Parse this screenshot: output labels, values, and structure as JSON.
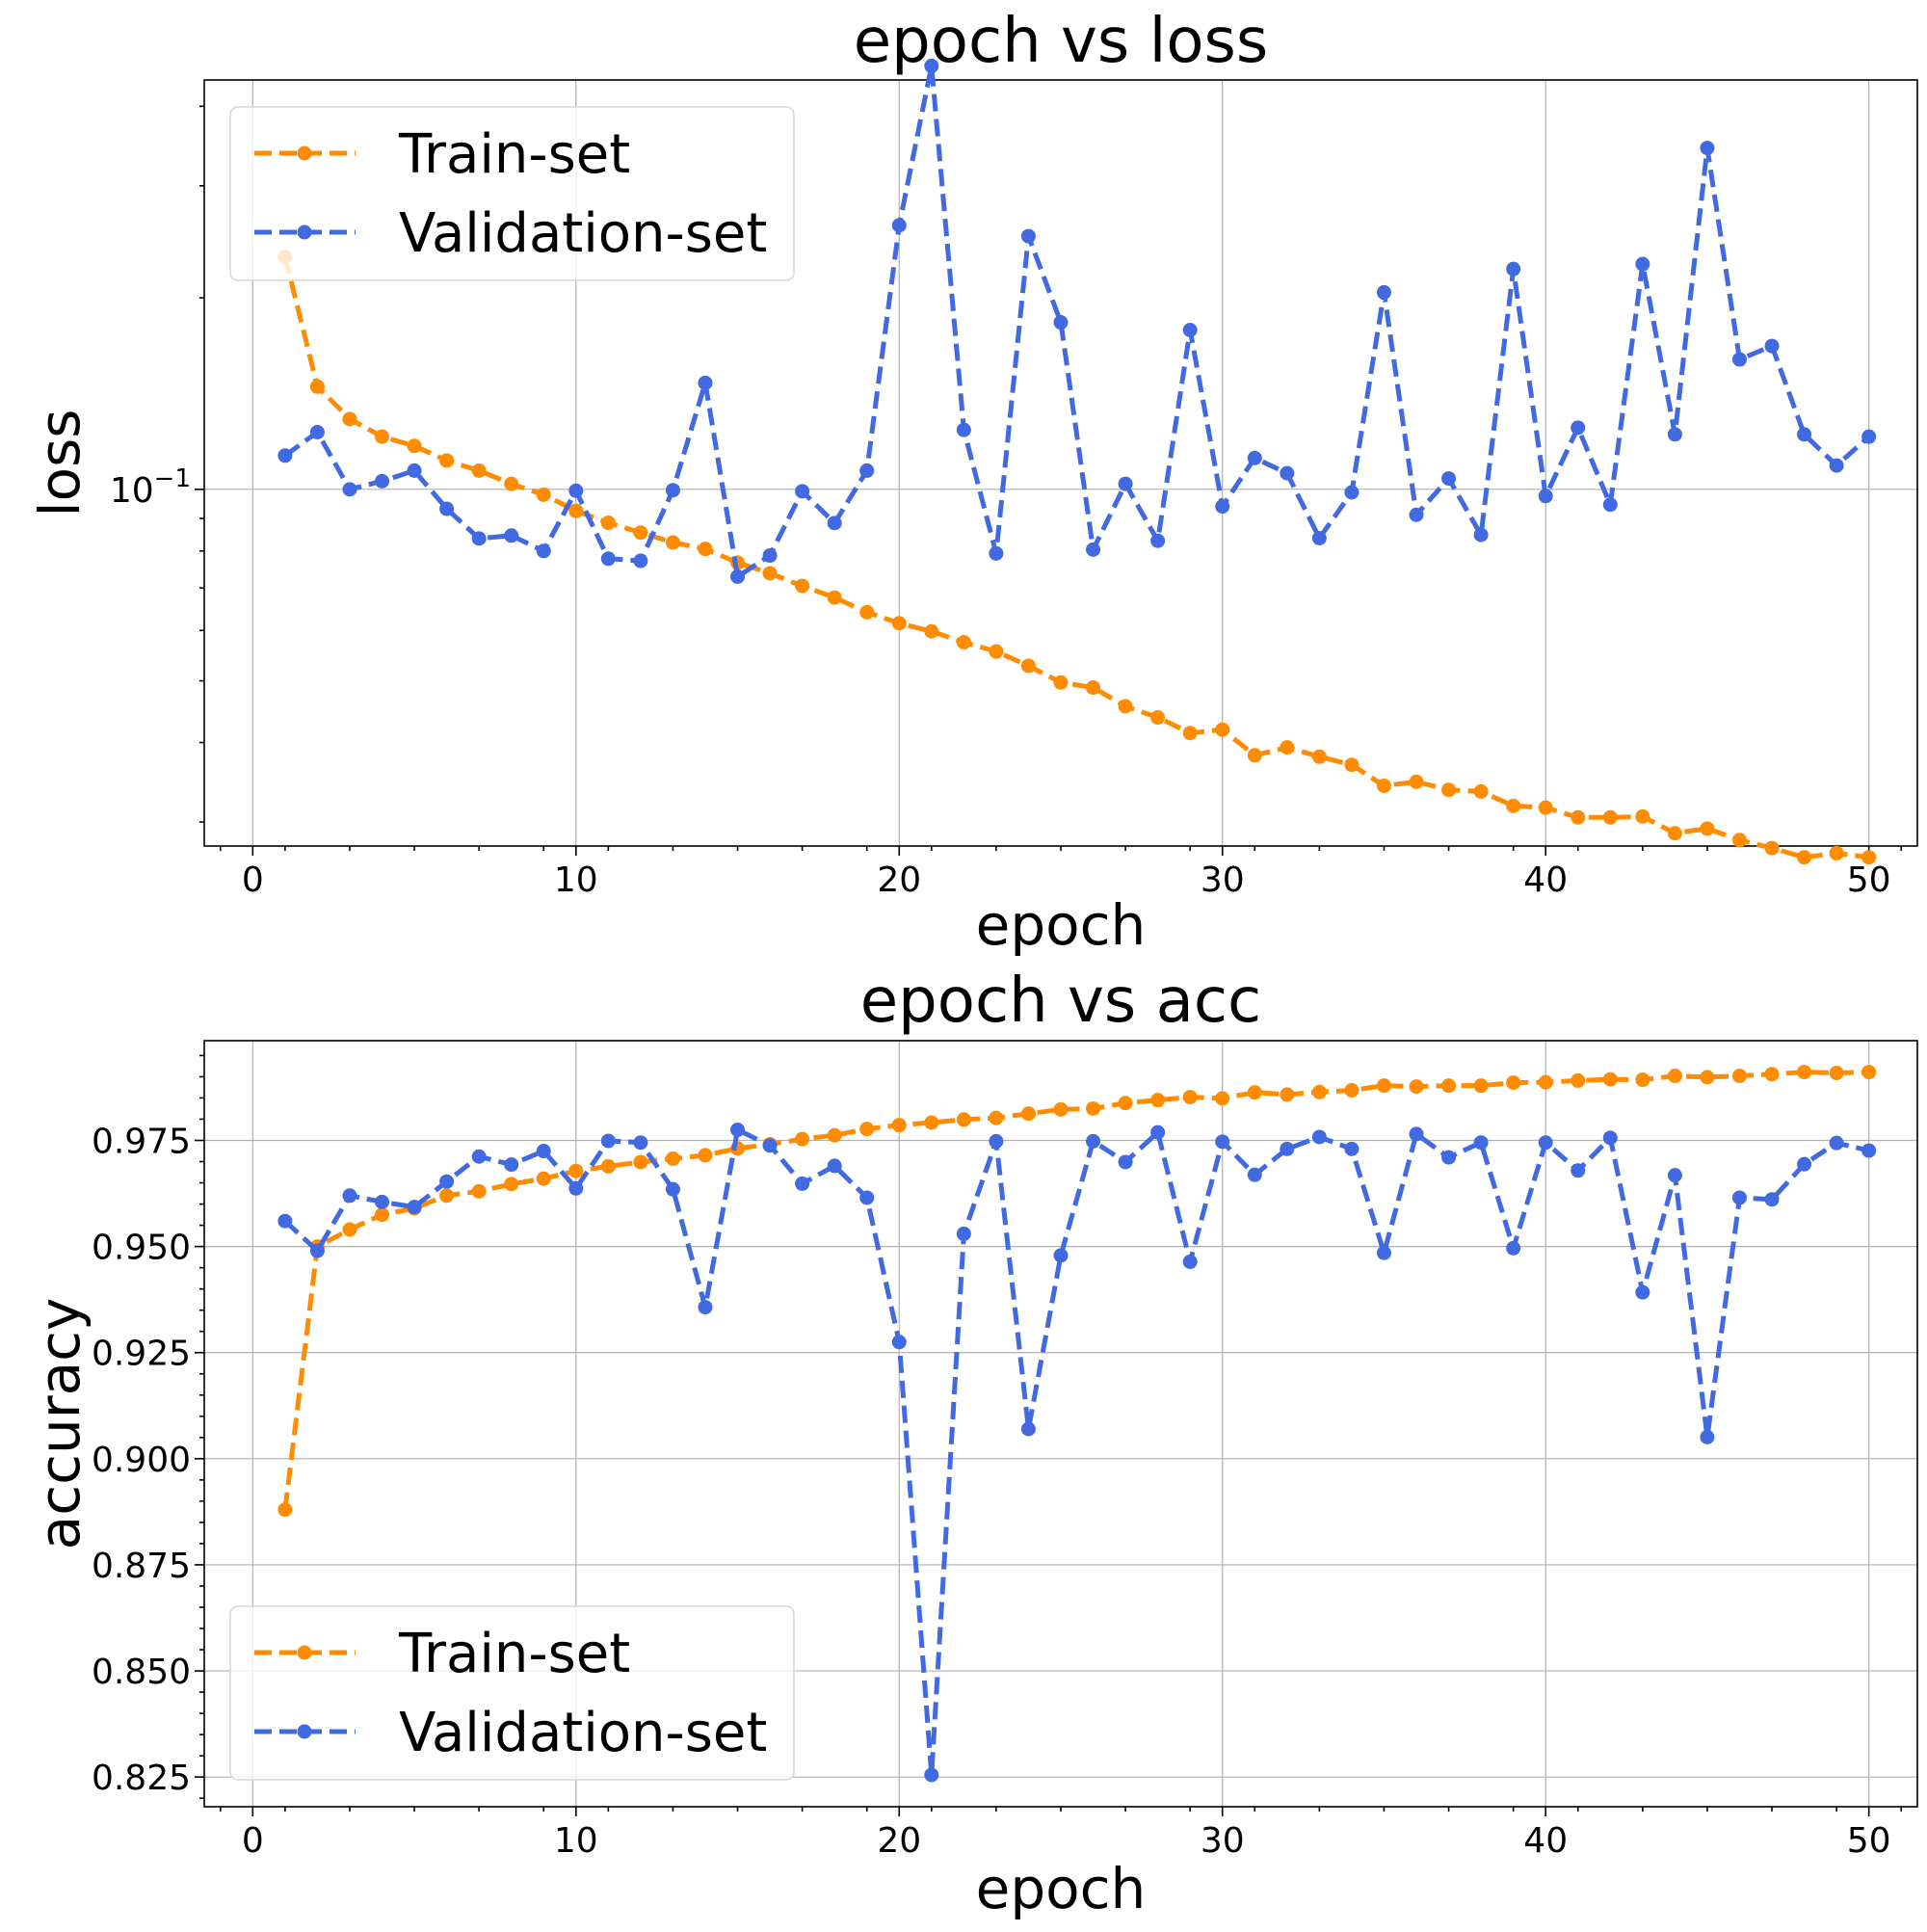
{
  "chart_data": [
    {
      "type": "line",
      "title": "epoch vs loss",
      "xlabel": "epoch",
      "ylabel": "loss",
      "yscale": "log",
      "xlim": [
        -1.5,
        51.5
      ],
      "ylim": [
        0.0275,
        0.44
      ],
      "xticks": [
        0,
        10,
        20,
        30,
        40,
        50
      ],
      "xtick_labels": [
        "0",
        "10",
        "20",
        "30",
        "40",
        "50"
      ],
      "yticks": [
        0.1
      ],
      "ytick_labels": [
        {
          "base": "10",
          "exp": "−1"
        }
      ],
      "grid": true,
      "legend": {
        "position": "upper-left",
        "entries": [
          "Train-set",
          "Validation-set"
        ]
      },
      "colors": {
        "Train-set": "#ff8c00",
        "Validation-set": "#4169e1"
      },
      "x": [
        1,
        2,
        3,
        4,
        5,
        6,
        7,
        8,
        9,
        10,
        11,
        12,
        13,
        14,
        15,
        16,
        17,
        18,
        19,
        20,
        21,
        22,
        23,
        24,
        25,
        26,
        27,
        28,
        29,
        30,
        31,
        32,
        33,
        34,
        35,
        36,
        37,
        38,
        39,
        40,
        41,
        42,
        43,
        44,
        45,
        46,
        47,
        48,
        49,
        50
      ],
      "series": [
        {
          "name": "Train-set",
          "values": [
            0.232,
            0.145,
            0.129,
            0.121,
            0.117,
            0.111,
            0.107,
            0.102,
            0.0981,
            0.0925,
            0.0886,
            0.0855,
            0.0825,
            0.0806,
            0.0767,
            0.0738,
            0.0705,
            0.0676,
            0.0641,
            0.0616,
            0.0598,
            0.0575,
            0.0556,
            0.0528,
            0.0497,
            0.0488,
            0.0456,
            0.0438,
            0.0414,
            0.0419,
            0.0382,
            0.0393,
            0.038,
            0.0369,
            0.0342,
            0.0347,
            0.0337,
            0.0335,
            0.0318,
            0.0316,
            0.0305,
            0.0305,
            0.0306,
            0.0288,
            0.0293,
            0.0281,
            0.0273,
            0.0264,
            0.0268,
            0.0264
          ]
        },
        {
          "name": "Validation-set",
          "values": [
            0.113,
            0.123,
            0.1,
            0.103,
            0.107,
            0.0932,
            0.0837,
            0.0846,
            0.08,
            0.0995,
            0.0778,
            0.0772,
            0.0997,
            0.147,
            0.0729,
            0.0787,
            0.0993,
            0.0885,
            0.107,
            0.26,
            0.463,
            0.124,
            0.0793,
            0.25,
            0.183,
            0.0804,
            0.102,
            0.083,
            0.178,
            0.094,
            0.112,
            0.106,
            0.0838,
            0.0989,
            0.204,
            0.0912,
            0.104,
            0.0848,
            0.222,
            0.0976,
            0.125,
            0.0946,
            0.226,
            0.122,
            0.344,
            0.16,
            0.168,
            0.122,
            0.109,
            0.121
          ]
        }
      ]
    },
    {
      "type": "line",
      "title": "epoch vs acc",
      "xlabel": "epoch",
      "ylabel": "accuracy",
      "yscale": "linear",
      "xlim": [
        -1.5,
        51.5
      ],
      "ylim": [
        0.818,
        0.9985
      ],
      "xticks": [
        0,
        10,
        20,
        30,
        40,
        50
      ],
      "xtick_labels": [
        "0",
        "10",
        "20",
        "30",
        "40",
        "50"
      ],
      "yticks": [
        0.825,
        0.85,
        0.875,
        0.9,
        0.925,
        0.95,
        0.975
      ],
      "ytick_labels": [
        "0.825",
        "0.850",
        "0.875",
        "0.900",
        "0.925",
        "0.950",
        "0.975"
      ],
      "grid": true,
      "legend": {
        "position": "lower-left",
        "entries": [
          "Train-set",
          "Validation-set"
        ]
      },
      "colors": {
        "Train-set": "#ff8c00",
        "Validation-set": "#4169e1"
      },
      "x": [
        1,
        2,
        3,
        4,
        5,
        6,
        7,
        8,
        9,
        10,
        11,
        12,
        13,
        14,
        15,
        16,
        17,
        18,
        19,
        20,
        21,
        22,
        23,
        24,
        25,
        26,
        27,
        28,
        29,
        30,
        31,
        32,
        33,
        34,
        35,
        36,
        37,
        38,
        39,
        40,
        41,
        42,
        43,
        44,
        45,
        46,
        47,
        48,
        49,
        50
      ],
      "series": [
        {
          "name": "Train-set",
          "values": [
            0.888,
            0.95,
            0.954,
            0.9575,
            0.959,
            0.962,
            0.963,
            0.9647,
            0.966,
            0.9678,
            0.9689,
            0.9699,
            0.9707,
            0.9715,
            0.9731,
            0.9741,
            0.9753,
            0.9762,
            0.9777,
            0.9786,
            0.9792,
            0.9799,
            0.9803,
            0.9813,
            0.9823,
            0.9825,
            0.9838,
            0.9845,
            0.9852,
            0.9849,
            0.9863,
            0.9858,
            0.9864,
            0.9868,
            0.9879,
            0.9877,
            0.9879,
            0.9879,
            0.9886,
            0.9887,
            0.9891,
            0.9894,
            0.9893,
            0.9902,
            0.9899,
            0.9902,
            0.9906,
            0.9911,
            0.9909,
            0.9911
          ]
        },
        {
          "name": "Validation-set",
          "values": [
            0.956,
            0.949,
            0.962,
            0.9605,
            0.9593,
            0.9653,
            0.9712,
            0.9693,
            0.9725,
            0.9637,
            0.9749,
            0.9745,
            0.9635,
            0.9357,
            0.9775,
            0.9738,
            0.9648,
            0.969,
            0.9615,
            0.9275,
            0.8255,
            0.953,
            0.9748,
            0.907,
            0.9479,
            0.9748,
            0.9699,
            0.9769,
            0.9464,
            0.9747,
            0.9669,
            0.973,
            0.9758,
            0.973,
            0.9485,
            0.9765,
            0.971,
            0.9745,
            0.9496,
            0.9745,
            0.9679,
            0.9756,
            0.9392,
            0.9668,
            0.9051,
            0.9615,
            0.9611,
            0.9694,
            0.9744,
            0.9726
          ]
        }
      ]
    }
  ]
}
